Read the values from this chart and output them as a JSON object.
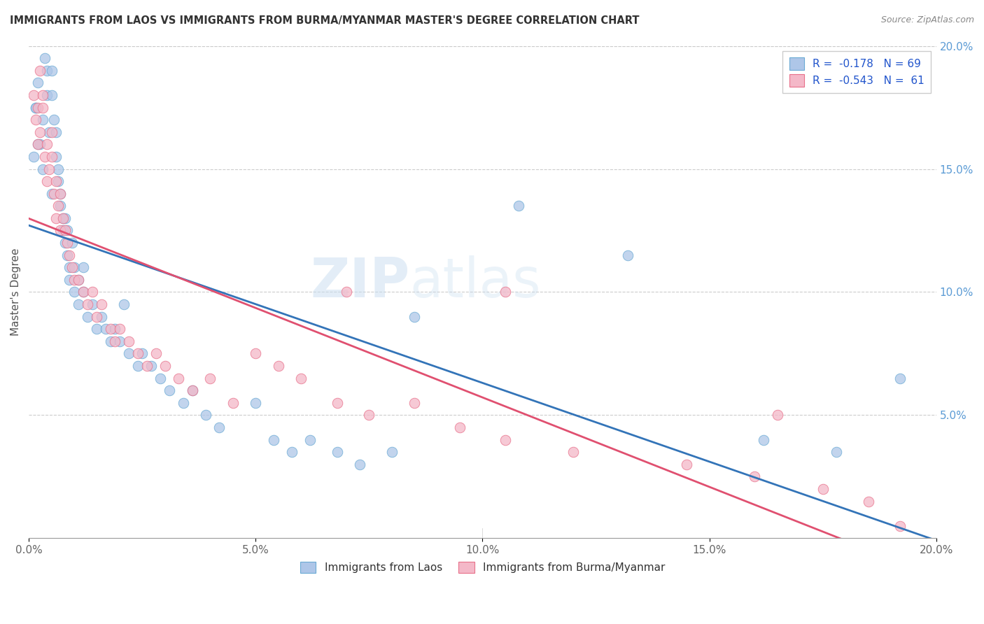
{
  "title": "IMMIGRANTS FROM LAOS VS IMMIGRANTS FROM BURMA/MYANMAR MASTER'S DEGREE CORRELATION CHART",
  "source": "Source: ZipAtlas.com",
  "ylabel": "Master's Degree",
  "xmin": 0.0,
  "xmax": 20.0,
  "ymin": 0.0,
  "ymax": 20.0,
  "yticks_right": [
    5.0,
    10.0,
    15.0,
    20.0
  ],
  "xticks": [
    0.0,
    5.0,
    10.0,
    15.0,
    20.0
  ],
  "legend_laos": "R =  -0.178   N = 69",
  "legend_burma": "R =  -0.543   N =  61",
  "color_laos": "#aec6e8",
  "color_burma": "#f4b8c8",
  "color_laos_edge": "#6aaad4",
  "color_burma_edge": "#e8708a",
  "color_laos_line": "#3374b8",
  "color_burma_line": "#e05070",
  "watermark_zip": "ZIP",
  "watermark_atlas": "atlas",
  "background_color": "#ffffff",
  "grid_color": "#cccccc",
  "laos_x": [
    0.15,
    0.2,
    0.25,
    0.3,
    0.35,
    0.4,
    0.4,
    0.45,
    0.5,
    0.5,
    0.55,
    0.6,
    0.6,
    0.65,
    0.65,
    0.7,
    0.7,
    0.75,
    0.75,
    0.8,
    0.8,
    0.85,
    0.85,
    0.9,
    0.9,
    0.95,
    1.0,
    1.0,
    1.1,
    1.1,
    1.2,
    1.2,
    1.3,
    1.4,
    1.5,
    1.6,
    1.7,
    1.8,
    1.9,
    2.0,
    2.1,
    2.2,
    2.4,
    2.5,
    2.7,
    2.9,
    3.1,
    3.4,
    3.6,
    3.9,
    4.2,
    5.0,
    5.4,
    5.8,
    6.2,
    6.8,
    7.3,
    8.0,
    8.5,
    10.8,
    13.2,
    16.2,
    17.8,
    19.2,
    0.5,
    0.3,
    0.2,
    0.15,
    0.1
  ],
  "laos_y": [
    17.5,
    18.5,
    16.0,
    17.0,
    19.5,
    18.0,
    19.0,
    16.5,
    18.0,
    19.0,
    17.0,
    16.5,
    15.5,
    15.0,
    14.5,
    14.0,
    13.5,
    13.0,
    12.5,
    13.0,
    12.0,
    12.5,
    11.5,
    11.0,
    10.5,
    12.0,
    11.0,
    10.0,
    10.5,
    9.5,
    10.0,
    11.0,
    9.0,
    9.5,
    8.5,
    9.0,
    8.5,
    8.0,
    8.5,
    8.0,
    9.5,
    7.5,
    7.0,
    7.5,
    7.0,
    6.5,
    6.0,
    5.5,
    6.0,
    5.0,
    4.5,
    5.5,
    4.0,
    3.5,
    4.0,
    3.5,
    3.0,
    3.5,
    9.0,
    13.5,
    11.5,
    4.0,
    3.5,
    6.5,
    14.0,
    15.0,
    16.0,
    17.5,
    15.5
  ],
  "burma_x": [
    0.1,
    0.15,
    0.2,
    0.2,
    0.25,
    0.3,
    0.3,
    0.35,
    0.4,
    0.4,
    0.45,
    0.5,
    0.5,
    0.55,
    0.6,
    0.6,
    0.65,
    0.7,
    0.7,
    0.75,
    0.8,
    0.85,
    0.9,
    0.95,
    1.0,
    1.1,
    1.2,
    1.3,
    1.4,
    1.5,
    1.6,
    1.8,
    1.9,
    2.0,
    2.2,
    2.4,
    2.6,
    2.8,
    3.0,
    3.3,
    3.6,
    4.0,
    4.5,
    5.0,
    5.5,
    6.0,
    6.8,
    7.5,
    8.5,
    9.5,
    10.5,
    12.0,
    14.5,
    16.0,
    17.5,
    18.5,
    19.2,
    7.0,
    10.5,
    16.5,
    0.25
  ],
  "burma_y": [
    18.0,
    17.0,
    17.5,
    16.0,
    16.5,
    17.5,
    18.0,
    15.5,
    16.0,
    14.5,
    15.0,
    16.5,
    15.5,
    14.0,
    14.5,
    13.0,
    13.5,
    14.0,
    12.5,
    13.0,
    12.5,
    12.0,
    11.5,
    11.0,
    10.5,
    10.5,
    10.0,
    9.5,
    10.0,
    9.0,
    9.5,
    8.5,
    8.0,
    8.5,
    8.0,
    7.5,
    7.0,
    7.5,
    7.0,
    6.5,
    6.0,
    6.5,
    5.5,
    7.5,
    7.0,
    6.5,
    5.5,
    5.0,
    5.5,
    4.5,
    4.0,
    3.5,
    3.0,
    2.5,
    2.0,
    1.5,
    0.5,
    10.0,
    10.0,
    5.0,
    19.0
  ]
}
